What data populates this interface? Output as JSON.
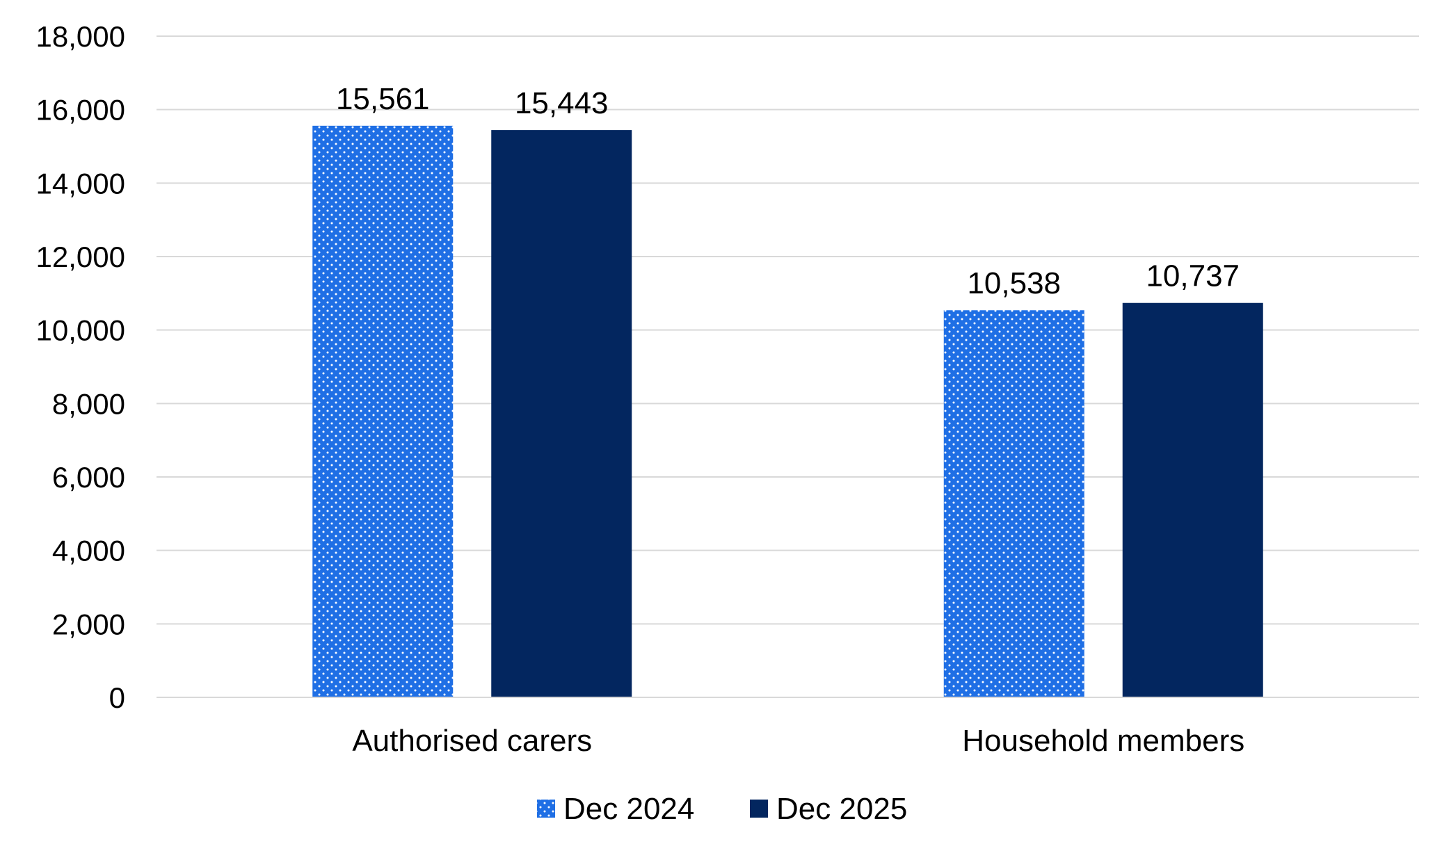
{
  "chart_data": {
    "type": "bar",
    "categories": [
      "Authorised carers",
      "Household members"
    ],
    "series": [
      {
        "name": "Dec 2024",
        "values": [
          15561,
          10538
        ],
        "value_labels": [
          "15,561",
          "10,538"
        ],
        "color": "#1f6fe5",
        "pattern": "dotted"
      },
      {
        "name": "Dec 2025",
        "values": [
          15443,
          10737
        ],
        "value_labels": [
          "15,443",
          "10,737"
        ],
        "color": "#03265f",
        "pattern": "solid"
      }
    ],
    "y_ticks": [
      0,
      2000,
      4000,
      6000,
      8000,
      10000,
      12000,
      14000,
      16000,
      18000
    ],
    "y_tick_labels": [
      "0",
      "2,000",
      "4,000",
      "6,000",
      "8,000",
      "10,000",
      "12,000",
      "14,000",
      "16,000",
      "18,000"
    ],
    "ylim": [
      0,
      18000
    ],
    "title": "",
    "xlabel": "",
    "ylabel": "",
    "grid": true,
    "legend_position": "bottom"
  },
  "colors": {
    "gridline": "#d9d9d9",
    "text": "#000000",
    "background": "#ffffff"
  }
}
